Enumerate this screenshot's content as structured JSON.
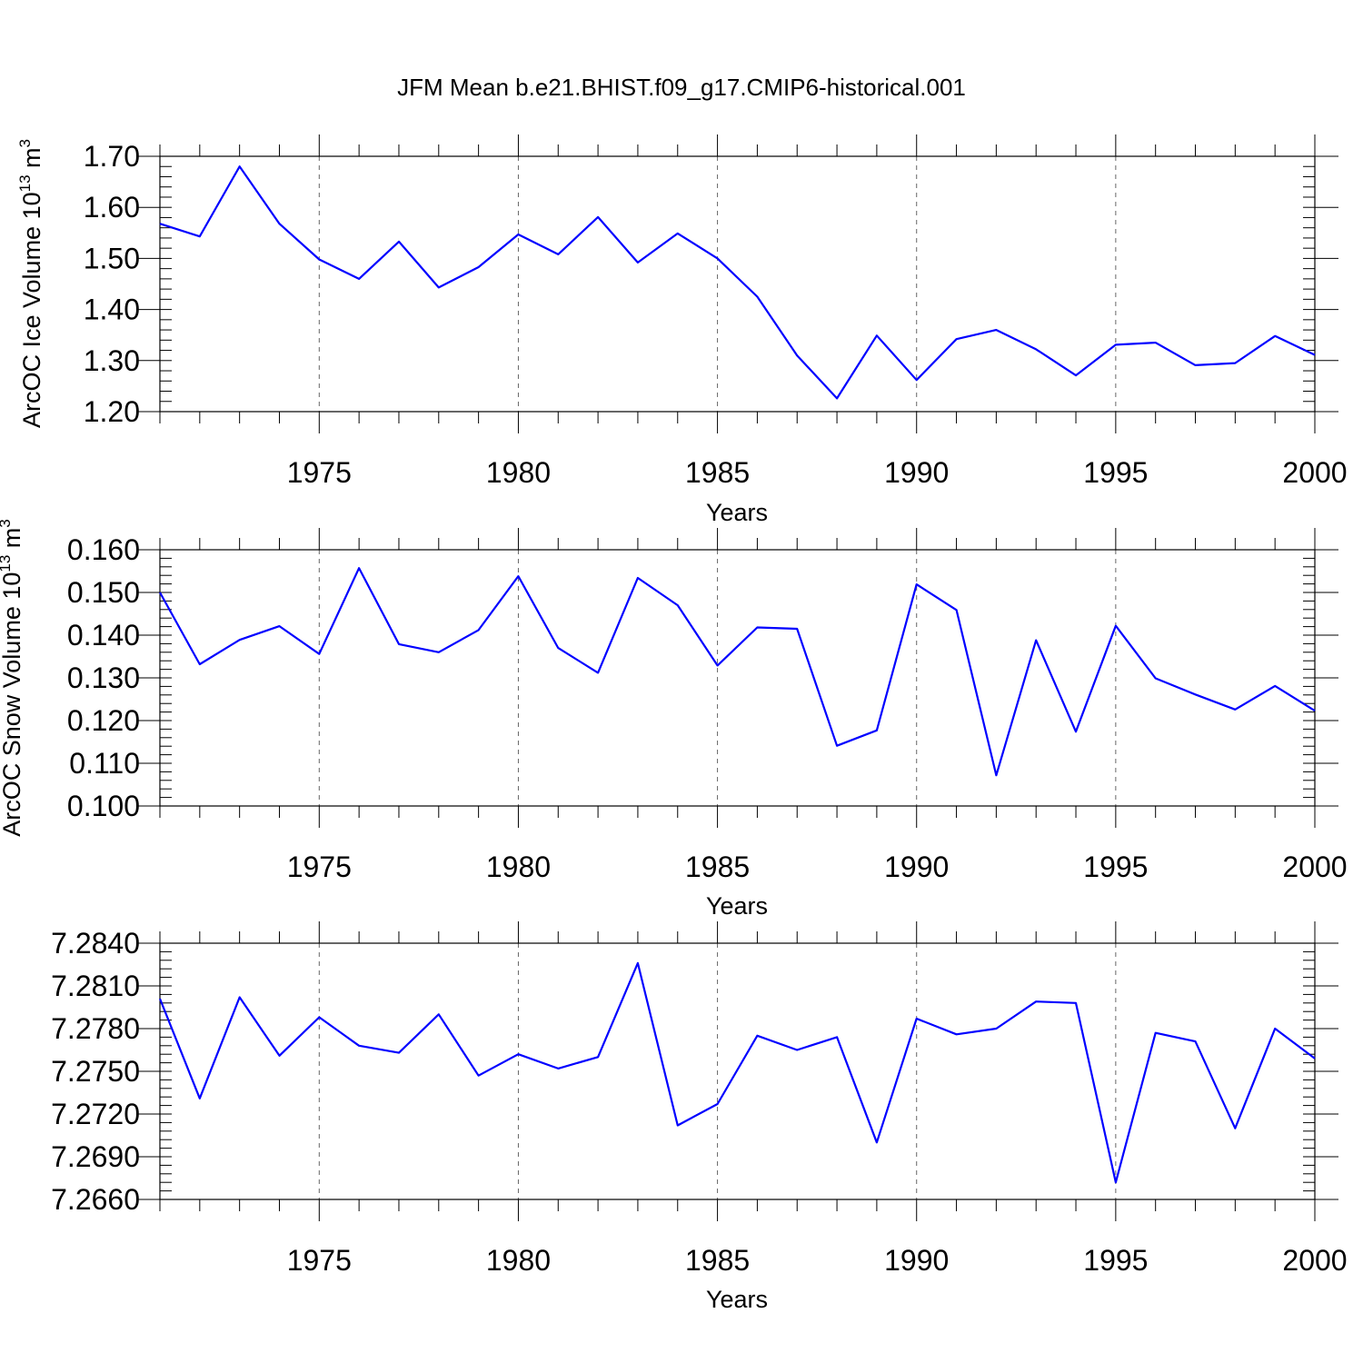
{
  "figure": {
    "title": "JFM Mean b.e21.BHIST.f09_g17.CMIP6-historical.001"
  },
  "chart_data": [
    {
      "type": "line",
      "title": "",
      "xlabel": "Years",
      "ylabel_main": "ArcOC Ice Volume 10",
      "ylabel_exp": "13",
      "ylabel_unit": " m",
      "ylabel_unit_exp": "3",
      "xlim": [
        1971,
        2000
      ],
      "ylim": [
        1.2,
        1.7
      ],
      "x_ticks": [
        1975,
        1980,
        1985,
        1990,
        1995,
        2000
      ],
      "x_tick_labels": [
        "1975",
        "1980",
        "1985",
        "1990",
        "1995",
        "2000"
      ],
      "y_ticks": [
        1.2,
        1.3,
        1.4,
        1.5,
        1.6,
        1.7
      ],
      "y_tick_labels": [
        "1.20",
        "1.30",
        "1.40",
        "1.50",
        "1.60",
        "1.70"
      ],
      "y_minor_step": 0.02,
      "grid": "vertical dashed at major x ticks",
      "x": [
        1971,
        1972,
        1973,
        1974,
        1975,
        1976,
        1977,
        1978,
        1979,
        1980,
        1981,
        1982,
        1983,
        1984,
        1985,
        1986,
        1987,
        1988,
        1989,
        1990,
        1991,
        1992,
        1993,
        1994,
        1995,
        1996,
        1997,
        1998,
        1999,
        2000
      ],
      "series": [
        {
          "color": "#0000ff",
          "values": [
            1.568,
            1.543,
            1.68,
            1.568,
            1.498,
            1.46,
            1.533,
            1.443,
            1.483,
            1.547,
            1.508,
            1.581,
            1.492,
            1.549,
            1.5,
            1.425,
            1.31,
            1.226,
            1.349,
            1.262,
            1.342,
            1.36,
            1.322,
            1.271,
            1.331,
            1.335,
            1.291,
            1.295,
            1.348,
            1.311
          ]
        }
      ]
    },
    {
      "type": "line",
      "title": "",
      "xlabel": "Years",
      "ylabel_main": "ArcOC Snow Volume 10",
      "ylabel_exp": "13",
      "ylabel_unit": " m",
      "ylabel_unit_exp": "3",
      "xlim": [
        1971,
        2000
      ],
      "ylim": [
        0.1,
        0.16
      ],
      "x_ticks": [
        1975,
        1980,
        1985,
        1990,
        1995,
        2000
      ],
      "x_tick_labels": [
        "1975",
        "1980",
        "1985",
        "1990",
        "1995",
        "2000"
      ],
      "y_ticks": [
        0.1,
        0.11,
        0.12,
        0.13,
        0.14,
        0.15,
        0.16
      ],
      "y_tick_labels": [
        "0.100",
        "0.110",
        "0.120",
        "0.130",
        "0.140",
        "0.150",
        "0.160"
      ],
      "y_minor_step": 0.002,
      "grid": "vertical dashed at major x ticks",
      "x": [
        1971,
        1972,
        1973,
        1974,
        1975,
        1976,
        1977,
        1978,
        1979,
        1980,
        1981,
        1982,
        1983,
        1984,
        1985,
        1986,
        1987,
        1988,
        1989,
        1990,
        1991,
        1992,
        1993,
        1994,
        1995,
        1996,
        1997,
        1998,
        1999,
        2000
      ],
      "series": [
        {
          "color": "#0000ff",
          "values": [
            0.15,
            0.1332,
            0.1389,
            0.1421,
            0.1356,
            0.1557,
            0.1379,
            0.136,
            0.1412,
            0.1538,
            0.137,
            0.1312,
            0.1534,
            0.147,
            0.1329,
            0.1418,
            0.1415,
            0.1141,
            0.1177,
            0.1519,
            0.1459,
            0.1072,
            0.1388,
            0.1174,
            0.1422,
            0.1299,
            0.1261,
            0.1226,
            0.1281,
            0.1223
          ]
        }
      ]
    },
    {
      "type": "line",
      "title": "",
      "xlabel": "Years",
      "ylabel_main": "",
      "ylim": [
        7.266,
        7.284
      ],
      "xlim": [
        1971,
        2000
      ],
      "x_ticks": [
        1975,
        1980,
        1985,
        1990,
        1995,
        2000
      ],
      "x_tick_labels": [
        "1975",
        "1980",
        "1985",
        "1990",
        "1995",
        "2000"
      ],
      "y_ticks": [
        7.266,
        7.269,
        7.272,
        7.275,
        7.278,
        7.281,
        7.284
      ],
      "y_tick_labels": [
        "7.2660",
        "7.2690",
        "7.2720",
        "7.2750",
        "7.2780",
        "7.2810",
        "7.2840"
      ],
      "y_minor_step": 0.0006,
      "grid": "vertical dashed at major x ticks",
      "x": [
        1971,
        1972,
        1973,
        1974,
        1975,
        1976,
        1977,
        1978,
        1979,
        1980,
        1981,
        1982,
        1983,
        1984,
        1985,
        1986,
        1987,
        1988,
        1989,
        1990,
        1991,
        1992,
        1993,
        1994,
        1995,
        1996,
        1997,
        1998,
        1999,
        2000
      ],
      "series": [
        {
          "color": "#0000ff",
          "values": [
            7.2801,
            7.2731,
            7.2802,
            7.2761,
            7.2788,
            7.2768,
            7.2763,
            7.279,
            7.2747,
            7.2762,
            7.2752,
            7.276,
            7.2826,
            7.2712,
            7.2727,
            7.2775,
            7.2765,
            7.2774,
            7.27,
            7.2787,
            7.2776,
            7.278,
            7.2799,
            7.2798,
            7.2672,
            7.2777,
            7.2771,
            7.271,
            7.278,
            7.2759
          ]
        }
      ]
    }
  ]
}
